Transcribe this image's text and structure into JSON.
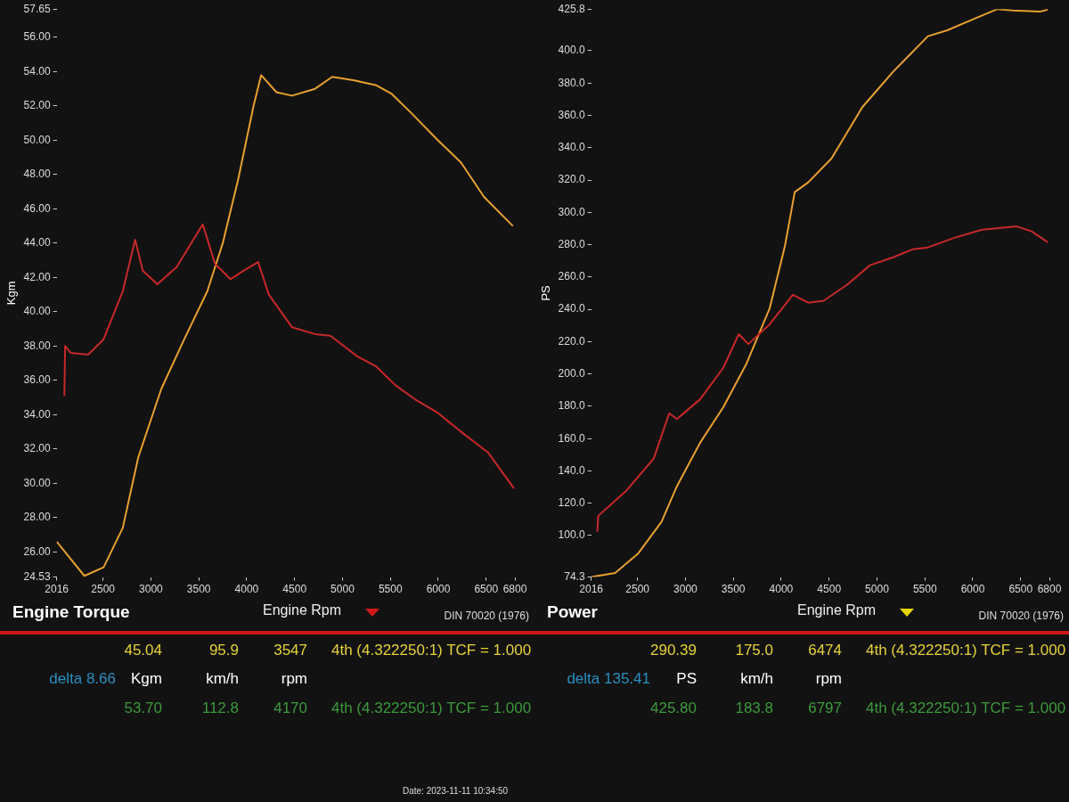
{
  "chart_data": [
    {
      "type": "line",
      "title": "Engine Torque",
      "xlabel": "Engine Rpm",
      "ylabel": "Kgm",
      "xlim": [
        2016,
        6800
      ],
      "xticks": [
        2016,
        2500,
        3000,
        3500,
        4000,
        4500,
        5000,
        5500,
        6000,
        6500,
        6800
      ],
      "ylim": [
        24.53,
        57.65
      ],
      "yticks": [
        {
          "value": 24.53,
          "label": "24.53"
        },
        {
          "value": 26,
          "label": "26.00"
        },
        {
          "value": 28,
          "label": "28.00"
        },
        {
          "value": 30,
          "label": "30.00"
        },
        {
          "value": 32,
          "label": "32.00"
        },
        {
          "value": 34,
          "label": "34.00"
        },
        {
          "value": 36,
          "label": "36.00"
        },
        {
          "value": 38,
          "label": "38.00"
        },
        {
          "value": 40,
          "label": "40.00"
        },
        {
          "value": 42,
          "label": "42.00"
        },
        {
          "value": 44,
          "label": "44.00"
        },
        {
          "value": 46,
          "label": "46.00"
        },
        {
          "value": 48,
          "label": "48.00"
        },
        {
          "value": 50,
          "label": "50.00"
        },
        {
          "value": 52,
          "label": "52.00"
        },
        {
          "value": 54,
          "label": "54.00"
        },
        {
          "value": 56,
          "label": "56.00"
        },
        {
          "value": 57.65,
          "label": "57.65"
        }
      ],
      "legend": false,
      "marker": "none",
      "series": [
        {
          "color": "#c8282a",
          "x": [
            2096,
            2104,
            2164,
            2345,
            2506,
            2706,
            2835,
            2915,
            3067,
            3268,
            3541,
            3669,
            3830,
            3970,
            4119,
            4231,
            4472,
            4713,
            4873,
            5154,
            5355,
            5556,
            5756,
            5997,
            6238,
            6519,
            6791
          ],
          "values": [
            35.1,
            38.0,
            37.6,
            37.5,
            38.4,
            41.2,
            44.2,
            42.4,
            41.6,
            42.6,
            45.1,
            42.8,
            41.9,
            42.4,
            42.9,
            41.0,
            39.1,
            38.7,
            38.6,
            37.4,
            36.8,
            35.7,
            34.9,
            34.1,
            33.0,
            31.8,
            29.7
          ]
        },
        {
          "color": "#e8a030",
          "x": [
            2016,
            2305,
            2506,
            2706,
            2867,
            3108,
            3348,
            3589,
            3750,
            3910,
            4071,
            4151,
            4311,
            4472,
            4713,
            4893,
            5114,
            5355,
            5515,
            5716,
            5997,
            6238,
            6478,
            6779
          ],
          "values": [
            26.6,
            24.6,
            25.1,
            27.4,
            31.5,
            35.5,
            38.4,
            41.2,
            44.0,
            47.7,
            52.0,
            53.8,
            52.8,
            52.6,
            53.0,
            53.7,
            53.5,
            53.2,
            52.7,
            51.6,
            50.0,
            48.7,
            46.7,
            45.0
          ]
        }
      ],
      "annotations": [
        "DIN 70020 (1976)",
        "45.04",
        "95.9",
        "3547",
        "4th (4.322250:1) TCF = 1.000",
        "delta 8.66",
        "Kgm",
        "km/h",
        "rpm",
        "53.70",
        "112.8",
        "4170",
        "4th (4.322250:1) TCF = 1.000",
        "Date: 2023-11-11 10:34:50"
      ]
    },
    {
      "type": "line",
      "title": "Power",
      "xlabel": "Engine Rpm",
      "ylabel": "PS",
      "xlim": [
        2016,
        6800
      ],
      "xticks": [
        2016,
        2500,
        3000,
        3500,
        4000,
        4500,
        5000,
        5500,
        6000,
        6500,
        6800
      ],
      "ylim": [
        74.3,
        425.8
      ],
      "yticks": [
        {
          "value": 74.3,
          "label": "74.3"
        },
        {
          "value": 100,
          "label": "100.0"
        },
        {
          "value": 120,
          "label": "120.0"
        },
        {
          "value": 140,
          "label": "140.0"
        },
        {
          "value": 160,
          "label": "160.0"
        },
        {
          "value": 180,
          "label": "180.0"
        },
        {
          "value": 200,
          "label": "200.0"
        },
        {
          "value": 220,
          "label": "220.0"
        },
        {
          "value": 240,
          "label": "240.0"
        },
        {
          "value": 260,
          "label": "260.0"
        },
        {
          "value": 280,
          "label": "280.0"
        },
        {
          "value": 300,
          "label": "300.0"
        },
        {
          "value": 320,
          "label": "320.0"
        },
        {
          "value": 340,
          "label": "340.0"
        },
        {
          "value": 360,
          "label": "360.0"
        },
        {
          "value": 380,
          "label": "380.0"
        },
        {
          "value": 400,
          "label": "400.0"
        },
        {
          "value": 425.8,
          "label": "425.8"
        }
      ],
      "legend": false,
      "marker": "none",
      "series": [
        {
          "color": "#c8282a",
          "x": [
            2080,
            2090,
            2387,
            2669,
            2831,
            2911,
            3153,
            3395,
            3556,
            3657,
            3879,
            4121,
            4282,
            4443,
            4685,
            4927,
            5169,
            5371,
            5532,
            5814,
            6097,
            6459,
            6620,
            6782
          ],
          "values": [
            102.4,
            112.2,
            128.0,
            147.6,
            175.7,
            172.1,
            184.3,
            203.8,
            224.6,
            218.5,
            230.7,
            249.0,
            244.1,
            245.3,
            255.1,
            267.3,
            272.2,
            277.1,
            278.3,
            284.4,
            289.3,
            291.3,
            288.1,
            281.5
          ]
        },
        {
          "color": "#e8a030",
          "x": [
            2016,
            2266,
            2508,
            2750,
            2911,
            3153,
            3395,
            3637,
            3879,
            4040,
            4141,
            4282,
            4524,
            4847,
            5169,
            5532,
            5734,
            5976,
            6258,
            6419,
            6701,
            6782
          ],
          "values": [
            74.3,
            76.8,
            89.0,
            108.5,
            130.5,
            157.4,
            179.4,
            206.3,
            240.5,
            279.5,
            312.5,
            318.6,
            333.3,
            365.1,
            387.1,
            409.0,
            412.7,
            418.8,
            425.8,
            424.9,
            424.2,
            425.5
          ]
        }
      ],
      "annotations": [
        "DIN 70020 (1976)",
        "290.39",
        "175.0",
        "6474",
        "4th (4.322250:1) TCF = 1.000",
        "delta 135.41",
        "PS",
        "km/h",
        "rpm",
        "425.80",
        "183.8",
        "6797",
        "4th (4.322250:1) TCF = 1.000"
      ]
    }
  ]
}
